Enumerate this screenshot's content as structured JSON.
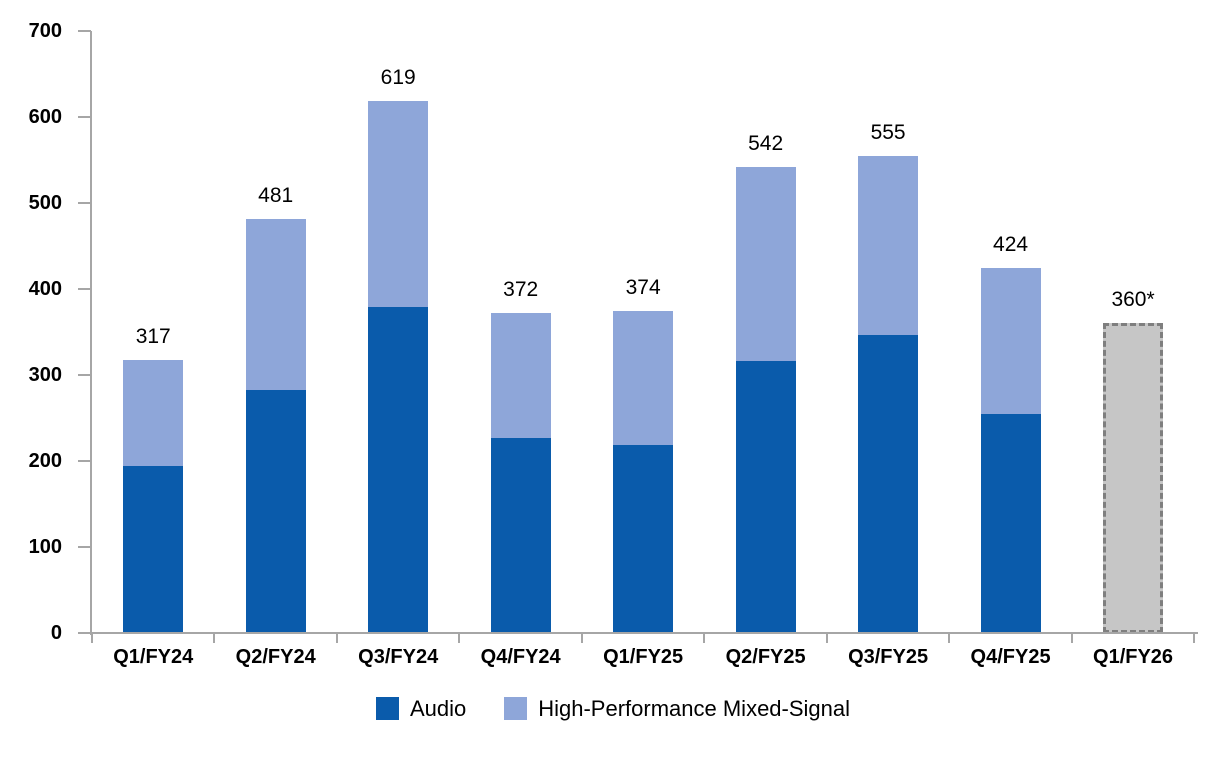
{
  "chart_data": {
    "type": "bar",
    "stacked": true,
    "title": "",
    "xlabel": "",
    "ylabel": "",
    "categories": [
      "Q1/FY24",
      "Q2/FY24",
      "Q3/FY24",
      "Q4/FY24",
      "Q1/FY25",
      "Q2/FY25",
      "Q3/FY25",
      "Q4/FY25",
      "Q1/FY26"
    ],
    "series": [
      {
        "name": "Audio",
        "color": "#0A5BAB",
        "values": [
          194,
          283,
          379,
          227,
          219,
          316,
          346,
          255,
          null
        ]
      },
      {
        "name": "High-Performance Mixed-Signal",
        "color": "#8EA6D9",
        "values": [
          123,
          198,
          240,
          145,
          155,
          226,
          209,
          169,
          null
        ]
      }
    ],
    "totals": [
      317,
      481,
      619,
      372,
      374,
      542,
      555,
      424,
      360
    ],
    "bar_labels": [
      "317",
      "481",
      "619",
      "372",
      "374",
      "542",
      "555",
      "424",
      "360*"
    ],
    "forecast_bar": {
      "category": "Q1/FY26",
      "index": 8,
      "value": 360,
      "label": "360*",
      "fill_color": "#C6C6C6",
      "border_color": "#7F7F7F",
      "border_style": "dashed"
    },
    "ylim": [
      0,
      700
    ],
    "ytick_step": 100,
    "ytick_labels": [
      "0",
      "100",
      "200",
      "300",
      "400",
      "500",
      "600",
      "700"
    ],
    "grid": false,
    "legend_position": "bottom",
    "axis_color": "#A6A6A6",
    "text_color": "#000000",
    "background_color": "#FFFFFF"
  }
}
